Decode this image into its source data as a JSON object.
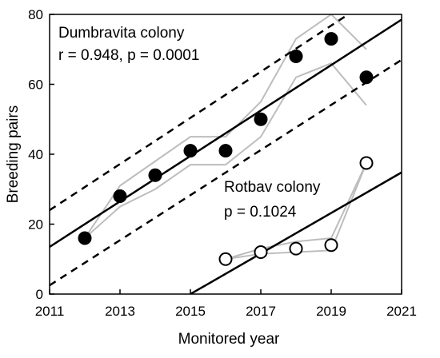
{
  "chart_data": {
    "type": "scatter",
    "xlabel": "Monitored year",
    "ylabel": "Breeding pairs",
    "xlim": [
      2011,
      2021
    ],
    "ylim": [
      0,
      80
    ],
    "x_ticks": [
      2011,
      2013,
      2015,
      2017,
      2019,
      2021
    ],
    "y_ticks": [
      0,
      20,
      40,
      60,
      80
    ],
    "grid": false,
    "series": [
      {
        "name": "Dumbravita colony",
        "marker": "filled-circle",
        "color": "#000000",
        "x": [
          2012,
          2013,
          2014,
          2015,
          2016,
          2017,
          2018,
          2019,
          2020
        ],
        "y": [
          16,
          28,
          34,
          41,
          41,
          50,
          68,
          73,
          62
        ],
        "band_lower": [
          16,
          25,
          30,
          37,
          37,
          45,
          62,
          66,
          54
        ],
        "band_upper": [
          16,
          31,
          38,
          45,
          45,
          55,
          73,
          80,
          70
        ],
        "regression": {
          "slope": 6.5,
          "intercept_at_2011": 13.5
        },
        "confidence_lower": {
          "at_2011": 2.5,
          "at_2021": 67
        },
        "confidence_upper": {
          "at_2011": 24,
          "at_2021": 90
        }
      },
      {
        "name": "Rotbav colony",
        "marker": "open-circle",
        "color": "#000000",
        "x": [
          2016,
          2017,
          2018,
          2019,
          2020
        ],
        "y": [
          10,
          12,
          13,
          14,
          37.5
        ],
        "band_lower": [
          10,
          11.5,
          12,
          12.5,
          37.5
        ],
        "band_upper": [
          10,
          13,
          15,
          16,
          37.5
        ],
        "regression": {
          "slope": 5.8,
          "intercept_at_2015": 0
        }
      }
    ],
    "annotations": [
      {
        "title": "Dumbravita colony",
        "stats": "r = 0.948, p = 0.0001"
      },
      {
        "title": "Rotbav colony",
        "stats": "p = 0.1024"
      }
    ]
  }
}
